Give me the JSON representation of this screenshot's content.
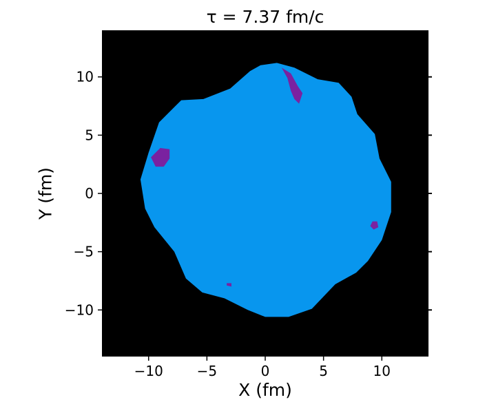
{
  "chart_data": {
    "type": "heatmap",
    "title_prefix": "τ",
    "title_rest": " =  7.37 fm/c",
    "xlabel": "X (fm)",
    "ylabel": "Y (fm)",
    "xlim": [
      -14,
      14
    ],
    "ylim": [
      -14,
      14
    ],
    "xticks": [
      -10,
      -5,
      0,
      5,
      10
    ],
    "yticks": [
      -10,
      -5,
      0,
      5,
      10
    ],
    "xtick_labels": [
      "−10",
      "−5",
      "0",
      "5",
      "10"
    ],
    "ytick_labels": [
      "−10",
      "−5",
      "0",
      "5",
      "10"
    ],
    "background_color": "#000000",
    "region_color": "#0896ee",
    "spot_color": "#7a22a0",
    "region_boundary": [
      [
        1.0,
        11.2
      ],
      [
        2.5,
        10.8
      ],
      [
        4.5,
        9.8
      ],
      [
        6.3,
        9.5
      ],
      [
        7.4,
        8.3
      ],
      [
        7.9,
        6.8
      ],
      [
        9.4,
        5.1
      ],
      [
        9.8,
        3.0
      ],
      [
        10.8,
        1.0
      ],
      [
        10.8,
        -1.6
      ],
      [
        10.0,
        -4.0
      ],
      [
        8.8,
        -5.8
      ],
      [
        7.8,
        -6.8
      ],
      [
        6.0,
        -7.8
      ],
      [
        4.0,
        -9.9
      ],
      [
        2.0,
        -10.6
      ],
      [
        0.0,
        -10.6
      ],
      [
        -1.5,
        -10.0
      ],
      [
        -3.5,
        -9.0
      ],
      [
        -5.4,
        -8.5
      ],
      [
        -6.8,
        -7.3
      ],
      [
        -7.8,
        -5.0
      ],
      [
        -9.5,
        -2.9
      ],
      [
        -10.3,
        -1.3
      ],
      [
        -10.7,
        1.2
      ],
      [
        -10.0,
        3.5
      ],
      [
        -9.1,
        6.1
      ],
      [
        -7.2,
        8.0
      ],
      [
        -5.3,
        8.1
      ],
      [
        -3.0,
        9.0
      ],
      [
        -1.3,
        10.5
      ],
      [
        -0.4,
        11.0
      ]
    ],
    "spots": [
      [
        [
          1.4,
          10.8
        ],
        [
          2.2,
          10.3
        ],
        [
          2.8,
          9.2
        ],
        [
          3.2,
          8.6
        ],
        [
          2.9,
          7.7
        ],
        [
          2.5,
          8.1
        ],
        [
          2.2,
          8.8
        ],
        [
          1.9,
          9.9
        ]
      ],
      [
        [
          -9.8,
          3.1
        ],
        [
          -9.0,
          3.9
        ],
        [
          -8.2,
          3.8
        ],
        [
          -8.2,
          3.0
        ],
        [
          -8.7,
          2.3
        ],
        [
          -9.4,
          2.3
        ]
      ],
      [
        [
          9.2,
          -2.4
        ],
        [
          9.6,
          -2.4
        ],
        [
          9.7,
          -2.9
        ],
        [
          9.3,
          -3.1
        ],
        [
          9.0,
          -2.8
        ]
      ],
      [
        [
          -3.3,
          -7.7
        ],
        [
          -2.9,
          -7.7
        ],
        [
          -2.9,
          -8.0
        ],
        [
          -3.3,
          -7.9
        ]
      ]
    ]
  }
}
